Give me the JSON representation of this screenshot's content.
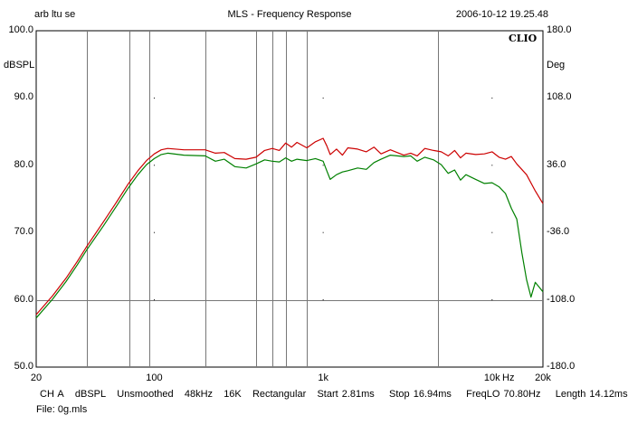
{
  "header": {
    "left": "arb ltu se",
    "center": "MLS - Frequency Response",
    "right": "2006-10-12 19.25.48"
  },
  "brand": "CLIO",
  "footer": {
    "channel": "CH A",
    "unit": "dBSPL",
    "smoothing": "Unsmoothed",
    "rate": "48kHz",
    "size": "16K",
    "window": "Rectangular",
    "start": "Start 2.81ms",
    "stop": "Stop 16.94ms",
    "freqlo": "FreqLO 70.80Hz",
    "length": "Length 14.12ms"
  },
  "file": "File: 0g.mls",
  "chart_data": {
    "type": "line",
    "xscale": "log",
    "xlim": [
      20,
      20000
    ],
    "ylim": [
      50,
      100
    ],
    "y2lim": [
      -180,
      180
    ],
    "ylabel": "dBSPL",
    "y2label": "Deg",
    "xunit": "Hz",
    "x_ticks": [
      {
        "v": 20,
        "label": "20"
      },
      {
        "v": 100,
        "label": "100"
      },
      {
        "v": 1000,
        "label": "1k"
      },
      {
        "v": 10000,
        "label": "10k"
      },
      {
        "v": 20000,
        "label": "20k"
      }
    ],
    "y_ticks": [
      "50.0",
      "60.0",
      "70.0",
      "80.0",
      "90.0",
      "100.0"
    ],
    "y2_ticks": [
      "-180.0",
      "-108.0",
      "-36.0",
      "36.0",
      "108.0",
      "180.0"
    ],
    "markers_hz": [
      40,
      71,
      94,
      200,
      400,
      500,
      600,
      800,
      4800
    ],
    "ref_line_db": 60,
    "series": [
      {
        "color": "#cc0000",
        "points": [
          [
            20,
            57.8
          ],
          [
            25,
            60.6
          ],
          [
            30,
            63.2
          ],
          [
            35,
            65.7
          ],
          [
            40,
            68.0
          ],
          [
            50,
            71.6
          ],
          [
            60,
            74.6
          ],
          [
            70,
            77.2
          ],
          [
            80,
            79.2
          ],
          [
            90,
            80.7
          ],
          [
            100,
            81.7
          ],
          [
            110,
            82.3
          ],
          [
            120,
            82.5
          ],
          [
            150,
            82.3
          ],
          [
            200,
            82.3
          ],
          [
            230,
            81.8
          ],
          [
            260,
            81.9
          ],
          [
            300,
            81.0
          ],
          [
            350,
            80.9
          ],
          [
            400,
            81.2
          ],
          [
            450,
            82.2
          ],
          [
            500,
            82.5
          ],
          [
            550,
            82.2
          ],
          [
            600,
            83.3
          ],
          [
            650,
            82.7
          ],
          [
            700,
            83.4
          ],
          [
            800,
            82.6
          ],
          [
            900,
            83.5
          ],
          [
            1000,
            84.0
          ],
          [
            1050,
            82.9
          ],
          [
            1100,
            81.6
          ],
          [
            1200,
            82.4
          ],
          [
            1300,
            81.5
          ],
          [
            1400,
            82.6
          ],
          [
            1600,
            82.4
          ],
          [
            1800,
            82.0
          ],
          [
            2000,
            82.7
          ],
          [
            2200,
            81.7
          ],
          [
            2500,
            82.3
          ],
          [
            3000,
            81.5
          ],
          [
            3300,
            81.8
          ],
          [
            3600,
            81.4
          ],
          [
            4000,
            82.5
          ],
          [
            4500,
            82.2
          ],
          [
            5000,
            82.0
          ],
          [
            5500,
            81.4
          ],
          [
            6000,
            82.2
          ],
          [
            6500,
            81.1
          ],
          [
            7000,
            81.8
          ],
          [
            8000,
            81.6
          ],
          [
            9000,
            81.7
          ],
          [
            10000,
            82.0
          ],
          [
            11000,
            81.2
          ],
          [
            12000,
            80.9
          ],
          [
            13000,
            81.3
          ],
          [
            14000,
            80.2
          ],
          [
            16000,
            78.6
          ],
          [
            18000,
            76.2
          ],
          [
            20000,
            74.3
          ]
        ]
      },
      {
        "color": "#008000",
        "points": [
          [
            20,
            57.3
          ],
          [
            25,
            60.1
          ],
          [
            30,
            62.7
          ],
          [
            35,
            65.2
          ],
          [
            40,
            67.5
          ],
          [
            50,
            71.0
          ],
          [
            60,
            74.0
          ],
          [
            70,
            76.6
          ],
          [
            80,
            78.6
          ],
          [
            90,
            80.1
          ],
          [
            100,
            81.0
          ],
          [
            110,
            81.6
          ],
          [
            120,
            81.8
          ],
          [
            150,
            81.5
          ],
          [
            200,
            81.4
          ],
          [
            230,
            80.6
          ],
          [
            260,
            80.9
          ],
          [
            300,
            79.8
          ],
          [
            350,
            79.6
          ],
          [
            400,
            80.2
          ],
          [
            450,
            80.8
          ],
          [
            500,
            80.6
          ],
          [
            550,
            80.5
          ],
          [
            600,
            81.1
          ],
          [
            650,
            80.6
          ],
          [
            700,
            80.9
          ],
          [
            800,
            80.7
          ],
          [
            900,
            81.0
          ],
          [
            1000,
            80.6
          ],
          [
            1050,
            79.2
          ],
          [
            1100,
            77.9
          ],
          [
            1200,
            78.6
          ],
          [
            1300,
            79.0
          ],
          [
            1400,
            79.2
          ],
          [
            1600,
            79.6
          ],
          [
            1800,
            79.4
          ],
          [
            2000,
            80.4
          ],
          [
            2200,
            80.9
          ],
          [
            2500,
            81.5
          ],
          [
            3000,
            81.3
          ],
          [
            3300,
            81.4
          ],
          [
            3600,
            80.6
          ],
          [
            4000,
            81.2
          ],
          [
            4500,
            80.8
          ],
          [
            5000,
            80.1
          ],
          [
            5500,
            78.8
          ],
          [
            6000,
            79.3
          ],
          [
            6500,
            77.8
          ],
          [
            7000,
            78.6
          ],
          [
            8000,
            77.9
          ],
          [
            9000,
            77.3
          ],
          [
            10000,
            77.4
          ],
          [
            11000,
            76.8
          ],
          [
            12000,
            75.8
          ],
          [
            13000,
            73.6
          ],
          [
            14000,
            72.0
          ],
          [
            15000,
            67.0
          ],
          [
            16000,
            63.0
          ],
          [
            17000,
            60.4
          ],
          [
            18000,
            62.6
          ],
          [
            19000,
            61.9
          ],
          [
            20000,
            61.2
          ]
        ]
      }
    ]
  }
}
